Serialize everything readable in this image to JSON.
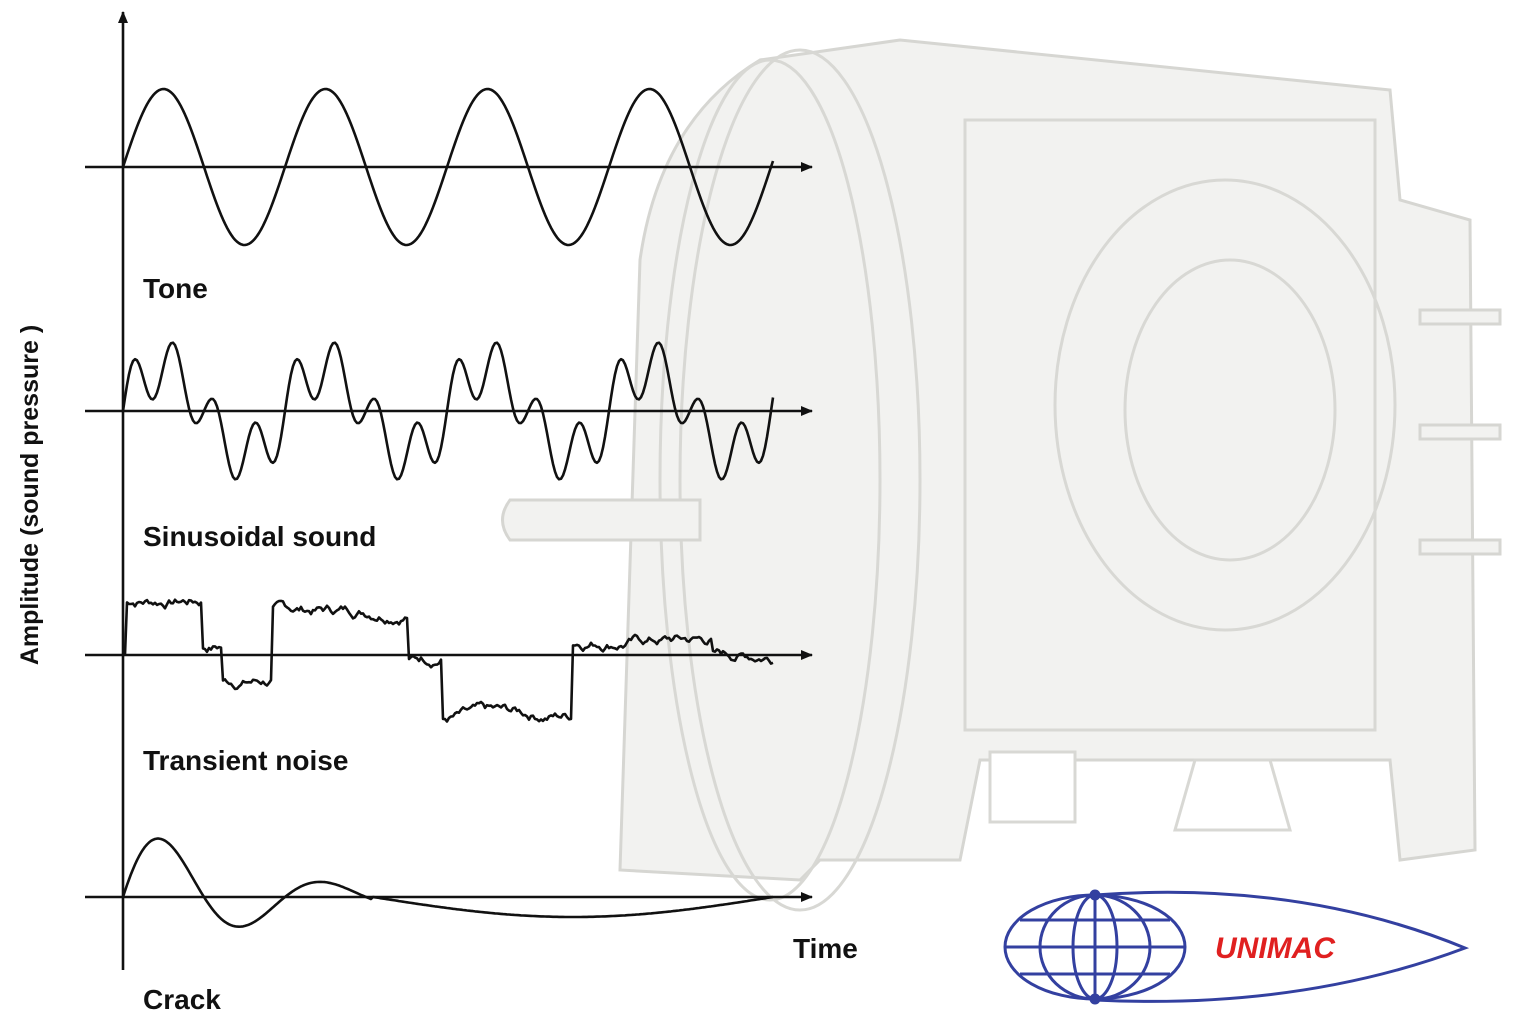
{
  "axis": {
    "y_label": "Amplitude (sound pressure )",
    "x_label": "Time"
  },
  "waves": [
    {
      "label": "Tone"
    },
    {
      "label": "Sinusoidal sound"
    },
    {
      "label": "Transient noise"
    },
    {
      "label": "Crack"
    }
  ],
  "logo": {
    "text": "UNIMAC"
  }
}
